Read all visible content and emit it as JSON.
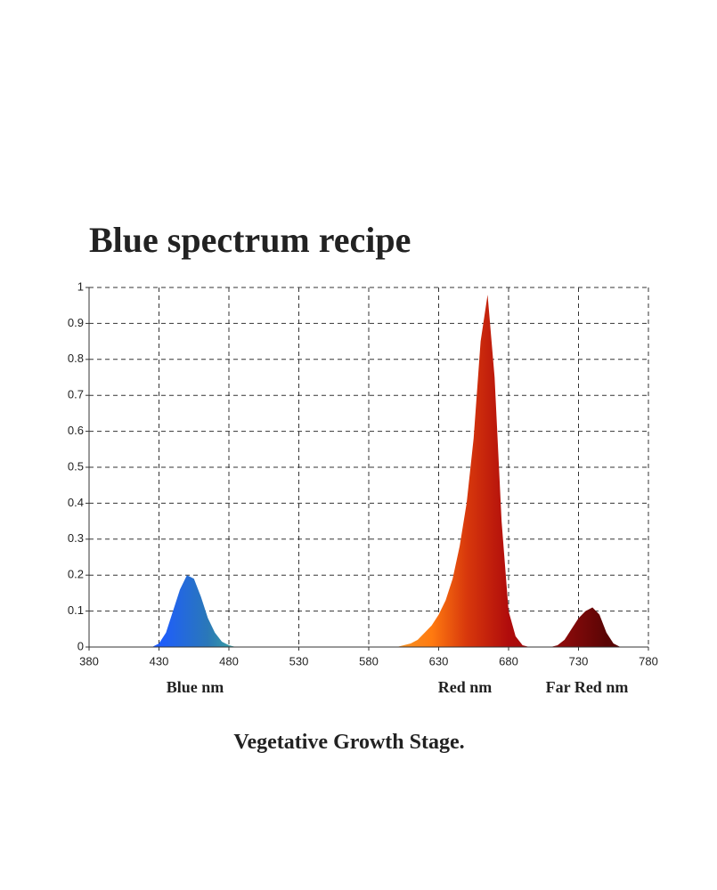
{
  "chart_data": {
    "type": "area",
    "title": "Blue spectrum recipe",
    "caption": "Vegetative Growth Stage.",
    "annotations": [
      "Blue nm",
      "Red nm",
      "Far Red nm"
    ],
    "x": [
      380,
      385,
      390,
      395,
      400,
      405,
      410,
      415,
      420,
      425,
      430,
      435,
      440,
      445,
      450,
      455,
      460,
      465,
      470,
      475,
      480,
      485,
      490,
      495,
      500,
      505,
      510,
      515,
      520,
      525,
      530,
      535,
      540,
      545,
      550,
      555,
      560,
      565,
      570,
      575,
      580,
      585,
      590,
      595,
      600,
      605,
      610,
      615,
      620,
      625,
      630,
      635,
      640,
      645,
      650,
      655,
      660,
      665,
      670,
      675,
      680,
      685,
      690,
      695,
      700,
      705,
      710,
      715,
      720,
      725,
      730,
      735,
      740,
      745,
      750,
      755,
      760,
      765,
      770,
      775,
      780
    ],
    "series": [
      {
        "values": [
          0,
          0,
          0,
          0,
          0,
          0,
          0,
          0,
          0,
          0,
          0.01,
          0.04,
          0.1,
          0.16,
          0.2,
          0.19,
          0.14,
          0.08,
          0.04,
          0.015,
          0.005,
          0,
          0,
          0,
          0,
          0,
          0,
          0,
          0,
          0,
          0,
          0,
          0,
          0,
          0,
          0,
          0,
          0,
          0,
          0,
          0,
          0,
          0,
          0,
          0,
          0.005,
          0.01,
          0.02,
          0.04,
          0.06,
          0.09,
          0.13,
          0.19,
          0.28,
          0.4,
          0.58,
          0.85,
          0.98,
          0.75,
          0.35,
          0.1,
          0.03,
          0.005,
          0,
          0,
          0,
          0,
          0.005,
          0.02,
          0.05,
          0.08,
          0.1,
          0.11,
          0.09,
          0.04,
          0.01,
          0,
          0,
          0,
          0,
          0
        ]
      }
    ],
    "fill_gradient": [
      {
        "x": 430,
        "color": "#1e5cff"
      },
      {
        "x": 465,
        "color": "#2a78b8"
      },
      {
        "x": 490,
        "color": "#3fae9a"
      },
      {
        "x": 540,
        "color": "#c8d84a"
      },
      {
        "x": 590,
        "color": "#f0a030"
      },
      {
        "x": 625,
        "color": "#ff7a10"
      },
      {
        "x": 650,
        "color": "#d8380c"
      },
      {
        "x": 680,
        "color": "#b00c0c"
      },
      {
        "x": 720,
        "color": "#8a0a0a"
      },
      {
        "x": 750,
        "color": "#5a0505"
      }
    ],
    "xlim": [
      380,
      780
    ],
    "ylim": [
      0,
      1
    ],
    "xticks": [
      380,
      430,
      480,
      530,
      580,
      630,
      680,
      730,
      780
    ],
    "yticks": [
      0,
      0.1,
      0.2,
      0.3,
      0.4,
      0.5,
      0.6,
      0.7,
      0.8,
      0.9,
      1
    ],
    "grid": true
  }
}
